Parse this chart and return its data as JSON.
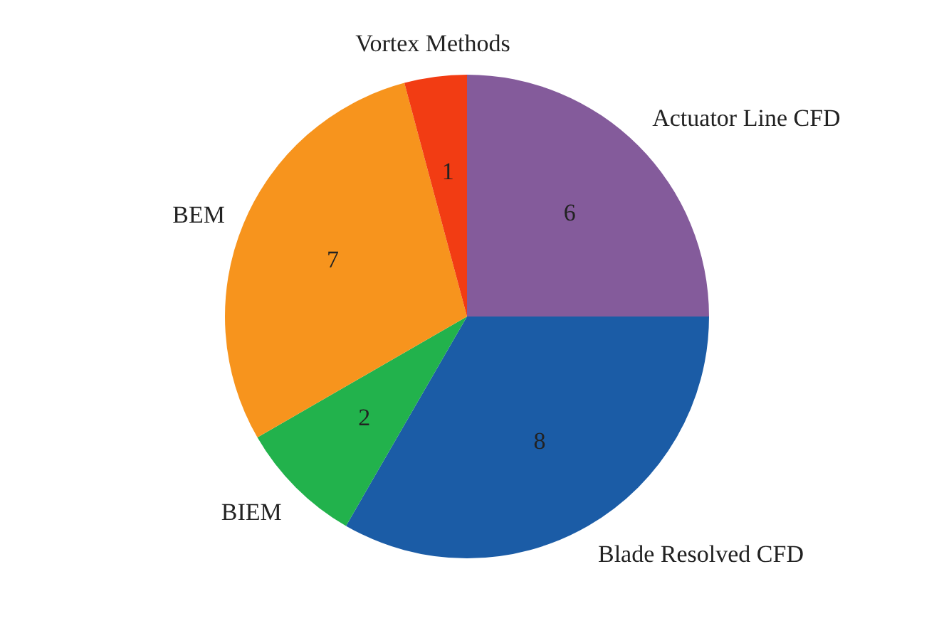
{
  "chart_data": {
    "type": "pie",
    "categories": [
      "Blade Resolved CFD",
      "BIEM",
      "BEM",
      "Vortex Methods",
      "Actuator Line CFD"
    ],
    "values": [
      8,
      2,
      7,
      1,
      6
    ],
    "colors": [
      "#1b5ca6",
      "#22b24c",
      "#f7941d",
      "#f23c13",
      "#845b9b"
    ],
    "data_labels": true,
    "legend": false
  }
}
